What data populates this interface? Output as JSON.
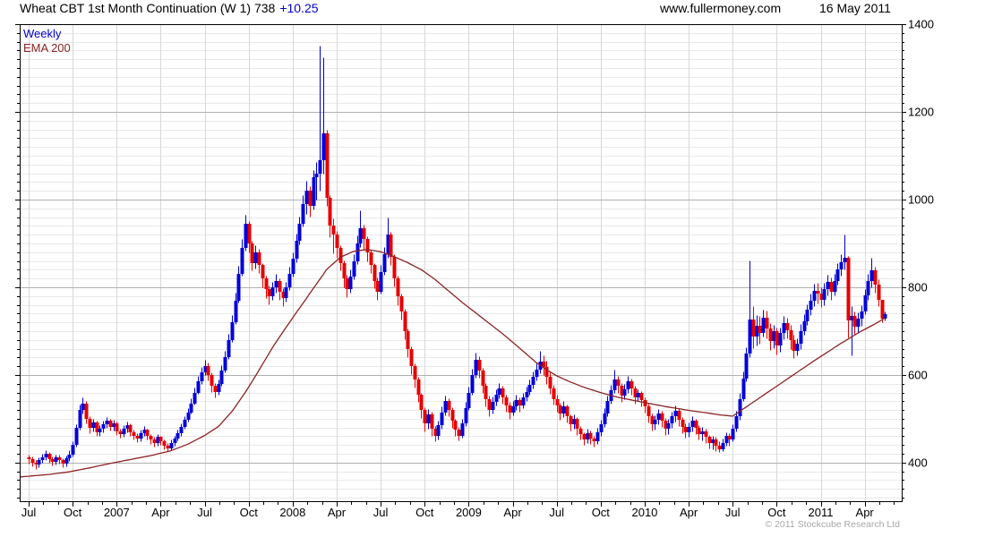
{
  "header": {
    "title": "Wheat CBT 1st Month Continuation (W 1) 738",
    "change": "+10.25",
    "website": "www.fullermoney.com",
    "date": "16 May 2011"
  },
  "legend": {
    "series1": "Weekly",
    "series2": "EMA 200"
  },
  "footer": {
    "copyright": "© 2011 Stockcube Research Ltd"
  },
  "colors": {
    "up_candle": "#0000d8",
    "down_candle": "#e60000",
    "ema_line": "#8b2323",
    "grid_major": "#b0b0b0",
    "grid_minor": "#e8e8e8",
    "grid_vertical": "#d8d8d8",
    "frame": "#000000",
    "label_text": "#000000",
    "change_text": "#0000cc",
    "copyright_text": "#a8a8a8"
  },
  "chart_data": {
    "type": "candlestick",
    "instrument": "Wheat CBT 1st Month Continuation",
    "symbol": "W 1",
    "last_price": 738,
    "change": "+10.25",
    "interval": "Weekly",
    "overlay": "EMA 200",
    "y_axis": {
      "min": 312,
      "max": 1400,
      "label_step": 200,
      "minor_step": 20,
      "labels": [
        400,
        600,
        800,
        1000,
        1200,
        1400
      ]
    },
    "x_axis": {
      "start": "Jul 2006",
      "end": "May 2011",
      "minor_tick": "monthly",
      "ticks": [
        {
          "week": 0,
          "label": "Jul"
        },
        {
          "week": 13,
          "label": "Oct"
        },
        {
          "week": 26,
          "label": "2007"
        },
        {
          "week": 39,
          "label": "Apr"
        },
        {
          "week": 52,
          "label": "Jul"
        },
        {
          "week": 65,
          "label": "Oct"
        },
        {
          "week": 78,
          "label": "2008"
        },
        {
          "week": 91,
          "label": "Apr"
        },
        {
          "week": 104,
          "label": "Jul"
        },
        {
          "week": 117,
          "label": "Oct"
        },
        {
          "week": 130,
          "label": "2009"
        },
        {
          "week": 143,
          "label": "Apr"
        },
        {
          "week": 156,
          "label": "Jul"
        },
        {
          "week": 169,
          "label": "Oct"
        },
        {
          "week": 182,
          "label": "2010"
        },
        {
          "week": 195,
          "label": "Apr"
        },
        {
          "week": 208,
          "label": "Jul"
        },
        {
          "week": 221,
          "label": "Oct"
        },
        {
          "week": 234,
          "label": "2011"
        },
        {
          "week": 247,
          "label": "Apr"
        }
      ]
    },
    "first_open": 412,
    "weekly_hlc": [
      [
        418,
        398,
        408
      ],
      [
        414,
        392,
        400
      ],
      [
        406,
        386,
        396
      ],
      [
        412,
        390,
        405
      ],
      [
        420,
        399,
        412
      ],
      [
        428,
        406,
        420
      ],
      [
        424,
        400,
        408
      ],
      [
        414,
        394,
        402
      ],
      [
        418,
        396,
        412
      ],
      [
        418,
        398,
        405
      ],
      [
        410,
        390,
        398
      ],
      [
        416,
        392,
        410
      ],
      [
        428,
        404,
        418
      ],
      [
        448,
        414,
        440
      ],
      [
        488,
        436,
        480
      ],
      [
        532,
        476,
        520
      ],
      [
        548,
        512,
        535
      ],
      [
        540,
        490,
        500
      ],
      [
        506,
        468,
        480
      ],
      [
        500,
        472,
        492
      ],
      [
        496,
        460,
        470
      ],
      [
        486,
        462,
        478
      ],
      [
        496,
        470,
        488
      ],
      [
        504,
        480,
        495
      ],
      [
        500,
        474,
        482
      ],
      [
        498,
        474,
        490
      ],
      [
        494,
        464,
        472
      ],
      [
        478,
        456,
        465
      ],
      [
        486,
        458,
        478
      ],
      [
        494,
        470,
        486
      ],
      [
        490,
        462,
        470
      ],
      [
        476,
        452,
        462
      ],
      [
        468,
        446,
        455
      ],
      [
        476,
        448,
        468
      ],
      [
        484,
        460,
        475
      ],
      [
        478,
        452,
        460
      ],
      [
        466,
        442,
        452
      ],
      [
        458,
        436,
        445
      ],
      [
        466,
        438,
        458
      ],
      [
        462,
        440,
        448
      ],
      [
        452,
        430,
        438
      ],
      [
        444,
        426,
        432
      ],
      [
        452,
        428,
        445
      ],
      [
        462,
        438,
        455
      ],
      [
        476,
        450,
        468
      ],
      [
        490,
        462,
        482
      ],
      [
        506,
        478,
        498
      ],
      [
        524,
        494,
        515
      ],
      [
        546,
        512,
        535
      ],
      [
        572,
        532,
        560
      ],
      [
        598,
        556,
        585
      ],
      [
        618,
        580,
        605
      ],
      [
        634,
        600,
        620
      ],
      [
        628,
        588,
        600
      ],
      [
        606,
        562,
        575
      ],
      [
        582,
        548,
        562
      ],
      [
        590,
        555,
        580
      ],
      [
        622,
        576,
        610
      ],
      [
        654,
        606,
        640
      ],
      [
        694,
        636,
        680
      ],
      [
        736,
        676,
        720
      ],
      [
        788,
        716,
        770
      ],
      [
        848,
        766,
        830
      ],
      [
        910,
        826,
        890
      ],
      [
        965,
        884,
        945
      ],
      [
        950,
        880,
        900
      ],
      [
        906,
        838,
        855
      ],
      [
        896,
        842,
        880
      ],
      [
        888,
        832,
        850
      ],
      [
        856,
        800,
        820
      ],
      [
        826,
        776,
        795
      ],
      [
        804,
        762,
        780
      ],
      [
        812,
        772,
        800
      ],
      [
        830,
        788,
        815
      ],
      [
        820,
        772,
        790
      ],
      [
        798,
        756,
        775
      ],
      [
        812,
        768,
        800
      ],
      [
        846,
        794,
        830
      ],
      [
        880,
        824,
        865
      ],
      [
        922,
        858,
        905
      ],
      [
        962,
        898,
        945
      ],
      [
        1010,
        938,
        990
      ],
      [
        1042,
        968,
        1020
      ],
      [
        1030,
        962,
        985
      ],
      [
        1068,
        978,
        1050
      ],
      [
        1085,
        1000,
        1060
      ],
      [
        1350,
        1020,
        1090
      ],
      [
        1325,
        1060,
        1150
      ],
      [
        1160,
        985,
        1005
      ],
      [
        1010,
        915,
        940
      ],
      [
        958,
        878,
        920
      ],
      [
        928,
        868,
        890
      ],
      [
        896,
        838,
        855
      ],
      [
        862,
        800,
        820
      ],
      [
        828,
        778,
        795
      ],
      [
        840,
        788,
        825
      ],
      [
        876,
        818,
        860
      ],
      [
        918,
        852,
        900
      ],
      [
        975,
        892,
        935
      ],
      [
        942,
        886,
        910
      ],
      [
        916,
        860,
        880
      ],
      [
        886,
        832,
        850
      ],
      [
        856,
        798,
        815
      ],
      [
        822,
        772,
        790
      ],
      [
        850,
        785,
        835
      ],
      [
        892,
        828,
        875
      ],
      [
        960,
        868,
        920
      ],
      [
        926,
        850,
        870
      ],
      [
        876,
        802,
        820
      ],
      [
        826,
        760,
        780
      ],
      [
        786,
        726,
        745
      ],
      [
        750,
        682,
        700
      ],
      [
        706,
        640,
        660
      ],
      [
        666,
        602,
        620
      ],
      [
        626,
        572,
        590
      ],
      [
        596,
        538,
        555
      ],
      [
        560,
        502,
        520
      ],
      [
        526,
        472,
        490
      ],
      [
        522,
        478,
        510
      ],
      [
        516,
        462,
        478
      ],
      [
        484,
        448,
        460
      ],
      [
        496,
        452,
        485
      ],
      [
        528,
        478,
        515
      ],
      [
        552,
        508,
        540
      ],
      [
        546,
        506,
        520
      ],
      [
        526,
        480,
        495
      ],
      [
        500,
        460,
        475
      ],
      [
        482,
        450,
        462
      ],
      [
        500,
        456,
        490
      ],
      [
        538,
        484,
        525
      ],
      [
        574,
        520,
        560
      ],
      [
        614,
        554,
        600
      ],
      [
        650,
        594,
        635
      ],
      [
        642,
        594,
        610
      ],
      [
        616,
        560,
        575
      ],
      [
        582,
        528,
        545
      ],
      [
        552,
        505,
        520
      ],
      [
        550,
        512,
        538
      ],
      [
        568,
        530,
        555
      ],
      [
        582,
        546,
        570
      ],
      [
        576,
        534,
        548
      ],
      [
        554,
        516,
        530
      ],
      [
        538,
        500,
        515
      ],
      [
        540,
        508,
        528
      ],
      [
        554,
        520,
        542
      ],
      [
        548,
        516,
        530
      ],
      [
        558,
        524,
        548
      ],
      [
        574,
        540,
        562
      ],
      [
        590,
        554,
        578
      ],
      [
        608,
        570,
        595
      ],
      [
        626,
        588,
        612
      ],
      [
        655,
        604,
        630
      ],
      [
        645,
        600,
        618
      ],
      [
        632,
        580,
        595
      ],
      [
        606,
        556,
        570
      ],
      [
        578,
        532,
        545
      ],
      [
        554,
        516,
        530
      ],
      [
        536,
        498,
        512
      ],
      [
        540,
        504,
        528
      ],
      [
        532,
        492,
        505
      ],
      [
        510,
        474,
        488
      ],
      [
        510,
        478,
        500
      ],
      [
        504,
        464,
        478
      ],
      [
        484,
        452,
        465
      ],
      [
        470,
        440,
        452
      ],
      [
        478,
        444,
        468
      ],
      [
        474,
        442,
        455
      ],
      [
        462,
        436,
        448
      ],
      [
        480,
        442,
        470
      ],
      [
        498,
        462,
        488
      ],
      [
        524,
        482,
        512
      ],
      [
        552,
        506,
        540
      ],
      [
        578,
        534,
        565
      ],
      [
        612,
        558,
        590
      ],
      [
        598,
        560,
        575
      ],
      [
        582,
        538,
        552
      ],
      [
        580,
        544,
        568
      ],
      [
        598,
        560,
        585
      ],
      [
        592,
        554,
        570
      ],
      [
        576,
        534,
        548
      ],
      [
        568,
        540,
        558
      ],
      [
        564,
        528,
        542
      ],
      [
        548,
        514,
        528
      ],
      [
        534,
        492,
        505
      ],
      [
        512,
        474,
        488
      ],
      [
        508,
        476,
        498
      ],
      [
        522,
        488,
        512
      ],
      [
        518,
        482,
        495
      ],
      [
        502,
        464,
        478
      ],
      [
        500,
        466,
        490
      ],
      [
        516,
        480,
        505
      ],
      [
        530,
        494,
        518
      ],
      [
        524,
        484,
        498
      ],
      [
        504,
        468,
        482
      ],
      [
        490,
        456,
        470
      ],
      [
        492,
        458,
        482
      ],
      [
        506,
        472,
        495
      ],
      [
        500,
        466,
        480
      ],
      [
        486,
        452,
        465
      ],
      [
        482,
        450,
        472
      ],
      [
        478,
        444,
        458
      ],
      [
        464,
        432,
        445
      ],
      [
        462,
        430,
        452
      ],
      [
        458,
        426,
        438
      ],
      [
        448,
        424,
        430
      ],
      [
        455,
        426,
        445
      ],
      [
        470,
        438,
        460
      ],
      [
        468,
        438,
        452
      ],
      [
        488,
        448,
        478
      ],
      [
        518,
        472,
        505
      ],
      [
        558,
        498,
        545
      ],
      [
        608,
        540,
        592
      ],
      [
        664,
        586,
        648
      ],
      [
        862,
        640,
        726
      ],
      [
        758,
        662,
        688
      ],
      [
        736,
        668,
        712
      ],
      [
        734,
        672,
        695
      ],
      [
        748,
        688,
        730
      ],
      [
        746,
        684,
        705
      ],
      [
        718,
        656,
        678
      ],
      [
        714,
        662,
        700
      ],
      [
        708,
        646,
        668
      ],
      [
        708,
        652,
        695
      ],
      [
        734,
        682,
        718
      ],
      [
        730,
        684,
        702
      ],
      [
        714,
        660,
        680
      ],
      [
        692,
        638,
        655
      ],
      [
        684,
        644,
        672
      ],
      [
        716,
        660,
        700
      ],
      [
        738,
        692,
        722
      ],
      [
        762,
        714,
        748
      ],
      [
        786,
        736,
        770
      ],
      [
        808,
        758,
        792
      ],
      [
        810,
        764,
        785
      ],
      [
        800,
        754,
        772
      ],
      [
        810,
        760,
        795
      ],
      [
        828,
        782,
        812
      ],
      [
        822,
        772,
        790
      ],
      [
        830,
        782,
        815
      ],
      [
        856,
        806,
        840
      ],
      [
        876,
        826,
        858
      ],
      [
        920,
        840,
        868
      ],
      [
        872,
        686,
        725
      ],
      [
        756,
        645,
        735
      ],
      [
        744,
        692,
        710
      ],
      [
        742,
        698,
        728
      ],
      [
        760,
        712,
        745
      ],
      [
        796,
        738,
        782
      ],
      [
        830,
        772,
        815
      ],
      [
        868,
        800,
        838
      ],
      [
        846,
        788,
        805
      ],
      [
        818,
        756,
        772
      ],
      [
        770,
        720,
        728
      ],
      [
        745,
        724,
        738
      ]
    ],
    "ema_200_anchors": [
      [
        -3,
        367
      ],
      [
        0,
        369
      ],
      [
        6,
        373
      ],
      [
        12,
        379
      ],
      [
        18,
        388
      ],
      [
        24,
        398
      ],
      [
        30,
        407
      ],
      [
        36,
        416
      ],
      [
        42,
        427
      ],
      [
        47,
        442
      ],
      [
        52,
        462
      ],
      [
        56,
        482
      ],
      [
        60,
        516
      ],
      [
        64,
        560
      ],
      [
        68,
        610
      ],
      [
        72,
        662
      ],
      [
        76,
        708
      ],
      [
        80,
        752
      ],
      [
        84,
        796
      ],
      [
        88,
        840
      ],
      [
        92,
        868
      ],
      [
        96,
        882
      ],
      [
        100,
        886
      ],
      [
        104,
        881
      ],
      [
        108,
        870
      ],
      [
        112,
        856
      ],
      [
        116,
        840
      ],
      [
        120,
        818
      ],
      [
        124,
        792
      ],
      [
        128,
        766
      ],
      [
        132,
        742
      ],
      [
        136,
        718
      ],
      [
        140,
        694
      ],
      [
        144,
        668
      ],
      [
        147,
        648
      ],
      [
        150,
        628
      ],
      [
        153,
        612
      ],
      [
        156,
        598
      ],
      [
        160,
        584
      ],
      [
        164,
        572
      ],
      [
        168,
        562
      ],
      [
        172,
        553
      ],
      [
        176,
        546
      ],
      [
        180,
        540
      ],
      [
        184,
        534
      ],
      [
        188,
        528
      ],
      [
        192,
        523
      ],
      [
        196,
        518
      ],
      [
        200,
        514
      ],
      [
        204,
        509
      ],
      [
        208,
        506
      ],
      [
        216,
        548
      ],
      [
        224,
        590
      ],
      [
        232,
        632
      ],
      [
        240,
        672
      ],
      [
        246,
        700
      ],
      [
        250,
        716
      ],
      [
        253,
        730
      ]
    ]
  }
}
